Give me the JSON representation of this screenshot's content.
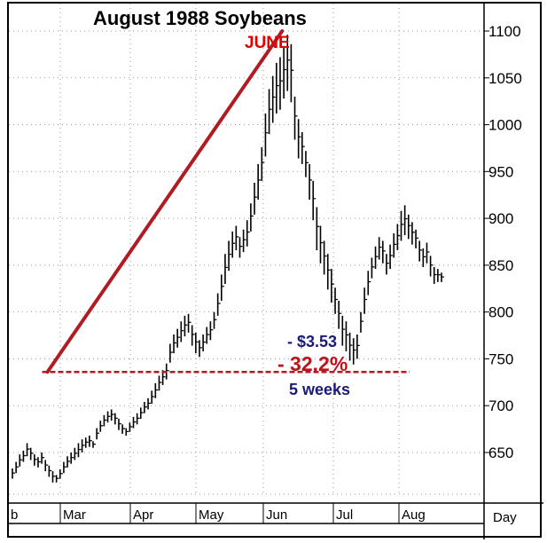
{
  "chart_data": {
    "type": "ohlc-bar",
    "title": "August 1988 Soybeans",
    "x_unit_label": "Day",
    "x_months": [
      "Feb",
      "Mar",
      "Apr",
      "May",
      "Jun",
      "Jul",
      "Aug"
    ],
    "x_month_labels_shown": [
      "b",
      "Mar",
      "Apr",
      "May",
      "Jun",
      "Jul",
      "Aug"
    ],
    "y_ticks": [
      650,
      700,
      750,
      800,
      850,
      900,
      950,
      1000,
      1050,
      1100
    ],
    "ylim": [
      600,
      1120
    ],
    "grid": true,
    "y_axis_side": "right",
    "series": [
      {
        "values": [
          [
            633,
            622
          ],
          [
            640,
            628
          ],
          [
            648,
            635
          ],
          [
            652,
            640
          ],
          [
            660,
            646
          ],
          [
            655,
            642
          ],
          [
            648,
            636
          ],
          [
            645,
            634
          ],
          [
            650,
            638
          ],
          [
            642,
            630
          ],
          [
            636,
            624
          ],
          [
            630,
            618
          ],
          [
            626,
            618
          ],
          [
            632,
            622
          ],
          [
            640,
            628
          ],
          [
            646,
            634
          ],
          [
            650,
            638
          ],
          [
            655,
            642
          ],
          [
            660,
            645
          ],
          [
            664,
            650
          ],
          [
            666,
            655
          ],
          [
            668,
            656
          ],
          [
            662,
            655
          ],
          [
            676,
            664
          ],
          [
            684,
            672
          ],
          [
            690,
            678
          ],
          [
            694,
            682
          ],
          [
            696,
            684
          ],
          [
            692,
            680
          ],
          [
            686,
            674
          ],
          [
            680,
            670
          ],
          [
            676,
            668
          ],
          [
            682,
            672
          ],
          [
            688,
            676
          ],
          [
            692,
            680
          ],
          [
            698,
            686
          ],
          [
            704,
            692
          ],
          [
            708,
            696
          ],
          [
            716,
            702
          ],
          [
            724,
            708
          ],
          [
            732,
            716
          ],
          [
            738,
            722
          ],
          [
            745,
            728
          ],
          [
            766,
            746
          ],
          [
            776,
            756
          ],
          [
            782,
            762
          ],
          [
            790,
            768
          ],
          [
            796,
            774
          ],
          [
            798,
            778
          ],
          [
            786,
            764
          ],
          [
            778,
            756
          ],
          [
            770,
            752
          ],
          [
            776,
            758
          ],
          [
            784,
            766
          ],
          [
            790,
            770
          ],
          [
            800,
            782
          ],
          [
            820,
            796
          ],
          [
            840,
            812
          ],
          [
            862,
            830
          ],
          [
            876,
            844
          ],
          [
            886,
            858
          ],
          [
            892,
            866
          ],
          [
            880,
            858
          ],
          [
            888,
            864
          ],
          [
            898,
            870
          ],
          [
            916,
            886
          ],
          [
            938,
            904
          ],
          [
            958,
            920
          ],
          [
            976,
            940
          ],
          [
            1012,
            966
          ],
          [
            1038,
            990
          ],
          [
            1052,
            1002
          ],
          [
            1066,
            1012
          ],
          [
            1072,
            1016
          ],
          [
            1084,
            1028
          ],
          [
            1096,
            1036
          ],
          [
            1086,
            1024
          ],
          [
            1030,
            984
          ],
          [
            1006,
            964
          ],
          [
            992,
            958
          ],
          [
            972,
            944
          ],
          [
            958,
            920
          ],
          [
            940,
            898
          ],
          [
            912,
            866
          ],
          [
            892,
            852
          ],
          [
            876,
            840
          ],
          [
            862,
            824
          ],
          [
            846,
            810
          ],
          [
            826,
            798
          ],
          [
            812,
            782
          ],
          [
            796,
            764
          ],
          [
            790,
            758
          ],
          [
            778,
            748
          ],
          [
            772,
            744
          ],
          [
            776,
            750
          ],
          [
            800,
            778
          ],
          [
            826,
            798
          ],
          [
            844,
            818
          ],
          [
            858,
            836
          ],
          [
            870,
            846
          ],
          [
            880,
            856
          ],
          [
            876,
            852
          ],
          [
            862,
            840
          ],
          [
            872,
            846
          ],
          [
            884,
            858
          ],
          [
            894,
            866
          ],
          [
            908,
            876
          ],
          [
            914,
            882
          ],
          [
            904,
            878
          ],
          [
            896,
            872
          ],
          [
            888,
            868
          ],
          [
            876,
            854
          ],
          [
            868,
            848
          ],
          [
            874,
            852
          ],
          [
            860,
            838
          ],
          [
            848,
            830
          ],
          [
            846,
            832
          ],
          [
            842,
            832
          ]
        ]
      }
    ],
    "annotations": {
      "june_label": "JUNE",
      "decline_amount": "- $3.53",
      "decline_percent": "- 32.2%",
      "decline_duration": "5 weeks",
      "trendline_from_value": 1100,
      "trendline_to_value": 736,
      "support_level": 736
    },
    "colors": {
      "bars": "#000000",
      "grid": "#999999",
      "trendline": "#b01c24",
      "june_label": "#e00000",
      "percent_label": "#c0101a",
      "dollar_label": "#1a1a7a"
    }
  }
}
